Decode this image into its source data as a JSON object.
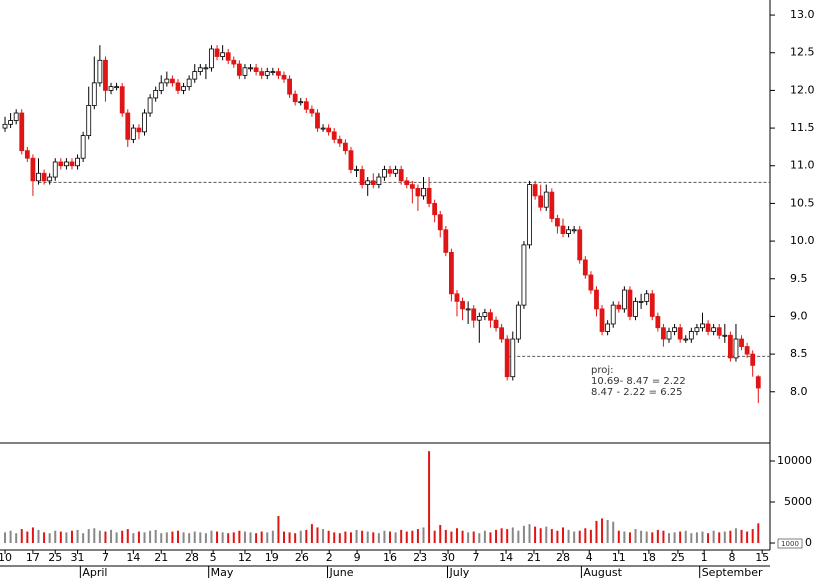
{
  "chart_data": {
    "type": "candlestick",
    "open": [
      11.5,
      11.55,
      11.6,
      11.7,
      11.2,
      11.1,
      10.8,
      10.9,
      10.8,
      10.85,
      11.05,
      11.0,
      11.05,
      11.0,
      11.1,
      11.4,
      11.8,
      12.1,
      12.4,
      12.0,
      12.05,
      12.05,
      11.7,
      11.35,
      11.5,
      11.45,
      11.7,
      11.9,
      12.0,
      12.1,
      12.15,
      12.1,
      12.0,
      12.05,
      12.15,
      12.25,
      12.3,
      12.3,
      12.55,
      12.45,
      12.5,
      12.4,
      12.35,
      12.2,
      12.3,
      12.3,
      12.25,
      12.2,
      12.25,
      12.25,
      12.2,
      12.15,
      11.95,
      11.85,
      11.85,
      11.75,
      11.7,
      11.5,
      11.5,
      11.45,
      11.35,
      11.3,
      11.2,
      10.95,
      10.95,
      10.75,
      10.8,
      10.75,
      10.85,
      10.95,
      10.9,
      10.95,
      10.8,
      10.75,
      10.7,
      10.6,
      10.7,
      10.5,
      10.35,
      10.15,
      9.85,
      9.3,
      9.2,
      9.1,
      9.1,
      8.95,
      9.0,
      9.05,
      8.95,
      8.85,
      8.7,
      8.2,
      8.7,
      9.15,
      9.95,
      10.75,
      10.6,
      10.45,
      10.65,
      10.3,
      10.2,
      10.1,
      10.15,
      10.15,
      9.75,
      9.55,
      9.35,
      9.1,
      8.8,
      8.9,
      9.15,
      9.1,
      9.35,
      9.0,
      9.2,
      9.2,
      9.3,
      9.0,
      8.85,
      8.7,
      8.8,
      8.85,
      8.7,
      8.7,
      8.8,
      8.85,
      8.9,
      8.8,
      8.85,
      8.75,
      8.75,
      8.45,
      8.7,
      8.6,
      8.5,
      8.2
    ],
    "high": [
      11.65,
      11.7,
      11.75,
      11.75,
      11.25,
      11.15,
      11.1,
      10.95,
      10.9,
      11.1,
      11.1,
      11.1,
      11.1,
      11.15,
      11.45,
      12.05,
      12.45,
      12.6,
      12.45,
      12.1,
      12.1,
      12.1,
      11.75,
      11.55,
      11.55,
      11.75,
      11.95,
      12.05,
      12.2,
      12.25,
      12.2,
      12.15,
      12.1,
      12.2,
      12.35,
      12.35,
      12.35,
      12.6,
      12.6,
      12.6,
      12.55,
      12.45,
      12.4,
      12.35,
      12.35,
      12.35,
      12.3,
      12.3,
      12.3,
      12.3,
      12.25,
      12.2,
      12.0,
      11.9,
      11.9,
      11.8,
      11.75,
      11.55,
      11.55,
      11.5,
      11.4,
      11.35,
      11.25,
      11.0,
      11.0,
      10.85,
      10.9,
      10.9,
      11.0,
      11.0,
      11.0,
      11.0,
      10.85,
      10.8,
      10.75,
      10.85,
      10.85,
      10.55,
      10.4,
      10.2,
      9.9,
      9.35,
      9.25,
      9.2,
      9.15,
      9.05,
      9.1,
      9.1,
      9.0,
      8.9,
      8.75,
      8.8,
      9.2,
      10.0,
      10.8,
      10.8,
      10.75,
      10.75,
      10.7,
      10.35,
      10.3,
      10.2,
      10.2,
      10.2,
      9.8,
      9.6,
      9.4,
      9.15,
      8.95,
      9.2,
      9.2,
      9.4,
      9.4,
      9.25,
      9.3,
      9.35,
      9.35,
      9.05,
      8.9,
      8.85,
      8.9,
      8.9,
      8.75,
      8.85,
      8.9,
      9.05,
      8.95,
      8.9,
      8.9,
      8.9,
      8.8,
      8.9,
      8.75,
      8.65,
      8.55,
      8.22
    ],
    "low": [
      11.45,
      11.5,
      11.55,
      11.15,
      11.05,
      10.6,
      10.75,
      10.75,
      10.75,
      10.8,
      10.95,
      10.95,
      10.95,
      10.95,
      11.05,
      11.35,
      11.75,
      12.05,
      11.85,
      11.95,
      12.0,
      11.65,
      11.25,
      11.3,
      11.35,
      11.4,
      11.65,
      11.85,
      11.95,
      12.05,
      12.05,
      11.95,
      11.95,
      12.0,
      12.1,
      12.2,
      12.15,
      12.25,
      12.4,
      12.4,
      12.35,
      12.3,
      12.15,
      12.15,
      12.25,
      12.2,
      12.15,
      12.15,
      12.2,
      12.15,
      12.1,
      11.9,
      11.8,
      11.8,
      11.7,
      11.65,
      11.45,
      11.45,
      11.4,
      11.3,
      11.25,
      11.15,
      10.9,
      10.85,
      10.7,
      10.6,
      10.7,
      10.7,
      10.8,
      10.85,
      10.85,
      10.75,
      10.7,
      10.5,
      10.4,
      10.55,
      10.45,
      10.25,
      10.05,
      9.8,
      9.2,
      9.0,
      8.95,
      8.9,
      8.85,
      8.65,
      8.95,
      8.85,
      8.8,
      8.65,
      8.15,
      8.15,
      8.65,
      9.1,
      9.9,
      10.55,
      10.4,
      10.4,
      10.25,
      10.1,
      10.05,
      10.05,
      10.1,
      9.7,
      9.5,
      9.3,
      9.0,
      8.75,
      8.75,
      8.85,
      9.05,
      9.05,
      8.95,
      8.95,
      9.1,
      9.15,
      8.95,
      8.8,
      8.6,
      8.65,
      8.75,
      8.65,
      8.65,
      8.65,
      8.75,
      8.8,
      8.75,
      8.75,
      8.7,
      8.65,
      8.4,
      8.4,
      8.55,
      8.45,
      8.2,
      7.85
    ],
    "close": [
      11.55,
      11.6,
      11.7,
      11.2,
      11.1,
      10.8,
      10.9,
      10.8,
      10.85,
      11.05,
      11.0,
      11.05,
      11.0,
      11.1,
      11.4,
      11.8,
      12.1,
      12.4,
      12.0,
      12.05,
      12.05,
      11.7,
      11.35,
      11.5,
      11.45,
      11.7,
      11.9,
      12.0,
      12.1,
      12.15,
      12.1,
      12.0,
      12.05,
      12.15,
      12.25,
      12.3,
      12.3,
      12.55,
      12.45,
      12.5,
      12.4,
      12.35,
      12.2,
      12.3,
      12.3,
      12.25,
      12.2,
      12.25,
      12.25,
      12.2,
      12.15,
      11.95,
      11.85,
      11.85,
      11.75,
      11.7,
      11.5,
      11.5,
      11.45,
      11.35,
      11.3,
      11.2,
      10.95,
      10.95,
      10.75,
      10.8,
      10.75,
      10.85,
      10.95,
      10.9,
      10.95,
      10.8,
      10.75,
      10.7,
      10.6,
      10.7,
      10.5,
      10.35,
      10.15,
      9.85,
      9.3,
      9.2,
      9.1,
      9.1,
      8.95,
      9.0,
      9.05,
      8.95,
      8.85,
      8.7,
      8.2,
      8.7,
      9.15,
      9.95,
      10.75,
      10.6,
      10.45,
      10.65,
      10.3,
      10.2,
      10.1,
      10.15,
      10.15,
      9.75,
      9.55,
      9.35,
      9.1,
      8.8,
      8.9,
      9.15,
      9.1,
      9.35,
      9.0,
      9.2,
      9.2,
      9.3,
      9.0,
      8.85,
      8.7,
      8.8,
      8.85,
      8.7,
      8.7,
      8.8,
      8.85,
      8.9,
      8.8,
      8.85,
      8.75,
      8.75,
      8.45,
      8.7,
      8.6,
      8.5,
      8.35,
      8.05
    ],
    "volume": [
      1300,
      1500,
      1200,
      1700,
      1400,
      1900,
      1600,
      1300,
      1200,
      1500,
      1400,
      1300,
      1500,
      1600,
      1200,
      1700,
      1800,
      1500,
      1400,
      1600,
      1300,
      1500,
      1700,
      1200,
      1400,
      1300,
      1500,
      1600,
      1200,
      1300,
      1400,
      1500,
      1300,
      1200,
      1400,
      1300,
      1200,
      1500,
      1400,
      1300,
      1200,
      1300,
      1500,
      1400,
      1300,
      1200,
      1400,
      1300,
      1500,
      3300,
      1400,
      1300,
      1200,
      1500,
      1600,
      2300,
      1900,
      1700,
      1500,
      1300,
      1200,
      1400,
      1300,
      1600,
      1500,
      1400,
      1300,
      1200,
      1500,
      1400,
      1300,
      1600,
      1400,
      1500,
      1700,
      1900,
      11200,
      1500,
      2200,
      1600,
      1400,
      1800,
      1500,
      1300,
      1400,
      1200,
      1500,
      1300,
      1600,
      1800,
      1700,
      1900,
      1500,
      2100,
      2300,
      2000,
      1800,
      2000,
      1700,
      1500,
      1900,
      1600,
      1400,
      1500,
      1800,
      1600,
      2700,
      3000,
      2800,
      2600,
      1500,
      1400,
      1300,
      1700,
      1500,
      1400,
      1300,
      1600,
      1500,
      1200,
      1300,
      1400,
      1500,
      1200,
      1300,
      1400,
      1200,
      1500,
      1300,
      1400,
      1500,
      1800,
      1600,
      1400,
      1700,
      2400
    ],
    "up_color": "#ffffff",
    "down_color": "#e01515",
    "volume_up_color": "#888888",
    "xlim": [
      -0.9,
      137.1
    ],
    "ylim": [
      7.32,
      13.2
    ],
    "yticks": [
      {
        "value": 8,
        "label": "8.0"
      },
      8.5,
      {
        "value": 9,
        "label": "9.0"
      },
      9.5,
      {
        "value": 10,
        "label": "10.0"
      },
      10.5,
      {
        "value": 11,
        "label": "11.0"
      },
      11.5,
      {
        "value": 12,
        "label": "12.0"
      },
      12.5,
      {
        "value": 13,
        "label": "13.0"
      }
    ],
    "volume_ylim": [
      -850,
      11950
    ],
    "volume_yticks": [
      0,
      5000,
      10000
    ],
    "volume_unit": "1000",
    "xticks": [
      {
        "value": 0,
        "label": "10"
      },
      {
        "value": 5,
        "label": "17"
      },
      {
        "value": 9,
        "label": "25"
      },
      {
        "value": 13,
        "label": "31"
      },
      {
        "value": 18,
        "label": "7"
      },
      {
        "value": 23,
        "label": "14"
      },
      {
        "value": 28,
        "label": "21"
      },
      {
        "value": 33.5,
        "label": "28"
      },
      {
        "value": 37.3,
        "label": "5"
      },
      {
        "value": 43,
        "label": "12"
      },
      {
        "value": 47.8,
        "label": "19"
      },
      {
        "value": 53.2,
        "label": "26"
      },
      {
        "value": 58.1,
        "label": "2"
      },
      {
        "value": 63.1,
        "label": "9"
      },
      {
        "value": 69,
        "label": "16"
      },
      {
        "value": 74.4,
        "label": "23"
      },
      {
        "value": 79.4,
        "label": "30"
      },
      {
        "value": 84.4,
        "label": "7"
      },
      {
        "value": 89.8,
        "label": "14"
      },
      {
        "value": 94.8,
        "label": "21"
      },
      {
        "value": 100,
        "label": "28"
      },
      {
        "value": 104.7,
        "label": "4"
      },
      {
        "value": 110,
        "label": "11"
      },
      {
        "value": 115.4,
        "label": "18"
      },
      {
        "value": 120.6,
        "label": "25"
      },
      {
        "value": 125.3,
        "label": "1"
      },
      {
        "value": 130.3,
        "label": "8"
      },
      {
        "value": 135.7,
        "label": "15"
      }
    ],
    "month_labels": [
      {
        "value": 13.5,
        "label": "April"
      },
      {
        "value": 36.5,
        "label": "May"
      },
      {
        "value": 57.8,
        "label": "June"
      },
      {
        "value": 79.3,
        "label": "July"
      },
      {
        "value": 103.3,
        "label": "August"
      },
      {
        "value": 124.5,
        "label": "September"
      }
    ],
    "hlines": [
      {
        "value": 10.78,
        "start": 6
      },
      {
        "value": 8.47,
        "start": 90
      }
    ],
    "annotation": [
      "proj:",
      "10.69- 8.47 = 2.22",
      "8.47 - 2.22 = 6.25"
    ]
  }
}
